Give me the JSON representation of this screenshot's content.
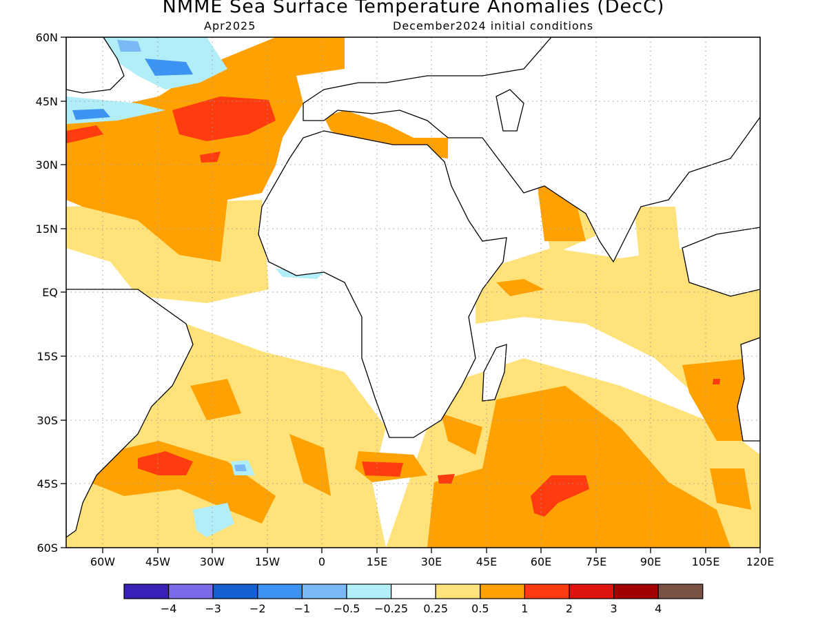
{
  "header": {
    "title": "NMME Sea Surface Temperature Anomalies (DecC)",
    "valid_month": "Apr2025",
    "init_conditions": "December2024 initial conditions"
  },
  "chart_data": {
    "type": "heatmap",
    "map": {
      "lon_range": [
        -70,
        120
      ],
      "lat_range": [
        -60,
        60
      ],
      "lon_ticks": [
        "60W",
        "45W",
        "30W",
        "15W",
        "0",
        "15E",
        "30E",
        "45E",
        "60E",
        "75E",
        "90E",
        "105E",
        "120E"
      ],
      "lat_ticks": [
        "60N",
        "45N",
        "30N",
        "15N",
        "EQ",
        "15S",
        "30S",
        "45S",
        "60S"
      ],
      "grid": "dotted",
      "land_fill": "#ffffff"
    },
    "colorbar": {
      "labels": [
        "−4",
        "−3",
        "−2",
        "−1",
        "−0.5",
        "−0.25",
        "0.25",
        "0.5",
        "1",
        "2",
        "3",
        "4"
      ],
      "colors": [
        "#3a20b6",
        "#7b6ae8",
        "#1560d0",
        "#3d93f2",
        "#7ab8f6",
        "#b2eef8",
        "#ffffff",
        "#ffe27a",
        "#ffa100",
        "#ff3b10",
        "#de1410",
        "#a00000",
        "#7a5244"
      ]
    },
    "anomaly_regions": [
      {
        "level": 0.5,
        "region": "north-atlantic-subtropical",
        "lon": [
          -70,
          -5
        ],
        "lat": [
          5,
          60
        ]
      },
      {
        "level": 1,
        "region": "north-atlantic-warm-core",
        "lon": [
          -50,
          -10
        ],
        "lat": [
          35,
          46
        ]
      },
      {
        "level": -1,
        "region": "newfoundland-cold",
        "lon": [
          -70,
          -30
        ],
        "lat": [
          42,
          60
        ]
      },
      {
        "level": 0.5,
        "region": "mediterranean",
        "lon": [
          0,
          35
        ],
        "lat": [
          31,
          44
        ]
      },
      {
        "level": 0.5,
        "region": "arabian-sea",
        "lon": [
          50,
          68
        ],
        "lat": [
          10,
          25
        ]
      },
      {
        "level": 0.25,
        "region": "tropical-indian-ocean",
        "lon": [
          40,
          120
        ],
        "lat": [
          -10,
          20
        ]
      },
      {
        "level": 0.25,
        "region": "south-atlantic",
        "lon": [
          -60,
          20
        ],
        "lat": [
          -60,
          -15
        ]
      },
      {
        "level": 1,
        "region": "south-atlantic-45s",
        "lon": [
          -50,
          -15
        ],
        "lat": [
          -50,
          -40
        ]
      },
      {
        "level": 0.5,
        "region": "southern-indian-ocean",
        "lon": [
          25,
          115
        ],
        "lat": [
          -60,
          -25
        ]
      },
      {
        "level": 2,
        "region": "south-indian-45s-core",
        "lon": [
          55,
          70
        ],
        "lat": [
          -52,
          -42
        ]
      },
      {
        "level": 0.5,
        "region": "west-australia",
        "lon": [
          95,
          118
        ],
        "lat": [
          -40,
          -15
        ]
      }
    ]
  }
}
